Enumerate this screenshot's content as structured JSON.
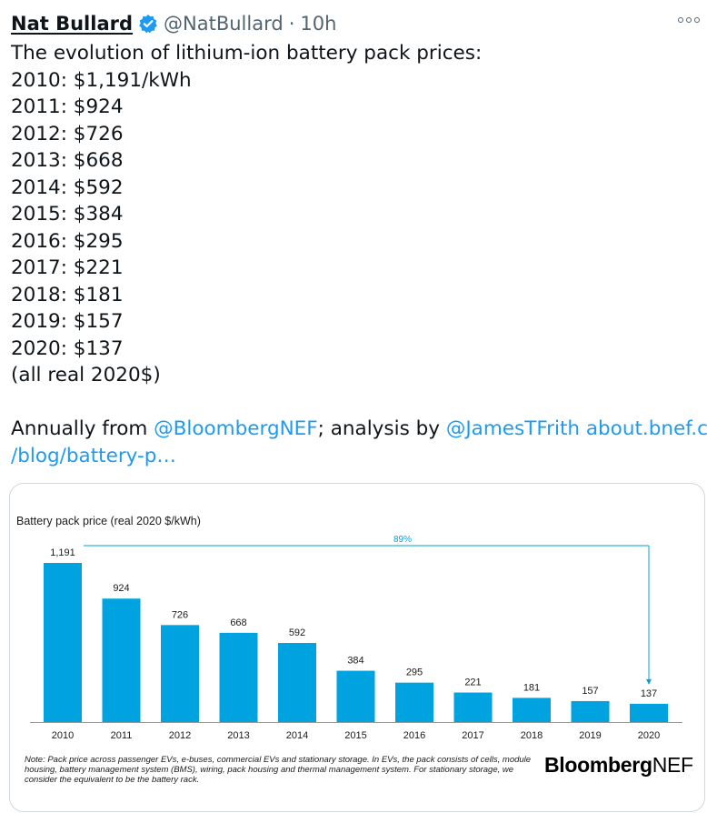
{
  "tweet": {
    "display_name": "Nat Bullard",
    "handle": "@NatBullard",
    "separator": "·",
    "time": "10h",
    "lines": [
      "The evolution of lithium-ion battery pack prices:",
      "2010: $1,191/kWh",
      "2011: $924",
      "2012: $726",
      "2013: $668",
      "2014: $592",
      "2015: $384",
      "2016: $295",
      "2017: $221",
      "2018: $181",
      "2019: $157",
      "2020: $137",
      "(all real 2020$)"
    ],
    "annual_prefix": "Annually from ",
    "mention1": "@BloombergNEF",
    "analysis": "; analysis by ",
    "mention2": "@JamesTFrith",
    "link_part1": "about.bnef.com",
    "link_part2": "/blog/battery-p…"
  },
  "icons": {
    "verified": "verified-badge-icon",
    "more": "more-options-icon"
  },
  "colors": {
    "bar": "#00a3e0",
    "annotation": "#00a3e0",
    "link": "#1d9bf0"
  },
  "card": {
    "note": "Note: Pack price across passenger EVs, e-buses, commercial EVs and stationary storage. In EVs, the pack consists of cells, module housing, battery management system (BMS), wiring, pack housing and thermal management system. For stationary storage, we consider the equivalent to be the battery rack.",
    "logo_bold": "Bloomberg",
    "logo_light": "NEF"
  },
  "chart_data": {
    "type": "bar",
    "title": "Battery pack price (real 2020 $/kWh)",
    "categories": [
      "2010",
      "2011",
      "2012",
      "2013",
      "2014",
      "2015",
      "2016",
      "2017",
      "2018",
      "2019",
      "2020"
    ],
    "values": [
      1191,
      924,
      726,
      668,
      592,
      384,
      295,
      221,
      181,
      157,
      137
    ],
    "data_labels": [
      "1,191",
      "924",
      "726",
      "668",
      "592",
      "384",
      "295",
      "221",
      "181",
      "157",
      "137"
    ],
    "annotation": "89%",
    "ylim": [
      0,
      1191
    ],
    "grid": false,
    "legend": "none"
  }
}
